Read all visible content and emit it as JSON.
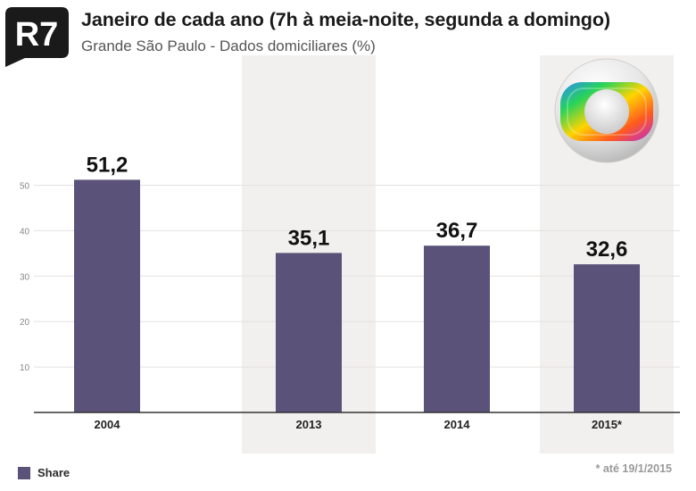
{
  "title": "Janeiro de cada ano (7h à meia-noite, segunda a domingo)",
  "subtitle": "Grande São Paulo - Dados domiciliares (%)",
  "logo": {
    "text": "R7",
    "icon": "r7-logo-icon"
  },
  "brand_icon": "globo-logo-icon",
  "colors": {
    "bar": "#5a5278",
    "band": "#f2f0ee",
    "grid": "#e4e2e0",
    "axis": "#333333",
    "label": "#111111"
  },
  "chart_data": {
    "type": "bar",
    "title": "Janeiro de cada ano (7h à meia-noite, segunda a domingo)",
    "subtitle": "Grande São Paulo - Dados domiciliares (%)",
    "categories": [
      "2004",
      "2013",
      "2014",
      "2015*"
    ],
    "series": [
      {
        "name": "Share",
        "values": [
          51.2,
          35.1,
          36.7,
          32.6
        ]
      }
    ],
    "value_labels": [
      "51,2",
      "35,1",
      "36,7",
      "32,6"
    ],
    "yticks": [
      10,
      20,
      30,
      40,
      50
    ],
    "ylim": [
      0,
      51.2
    ],
    "highlighted_categories": [
      "2013",
      "2015*"
    ],
    "grid": true,
    "legend": "bottom-left",
    "xlabel": "",
    "ylabel": ""
  },
  "legend": {
    "label": "Share"
  },
  "footnote": "* até 19/1/2015"
}
